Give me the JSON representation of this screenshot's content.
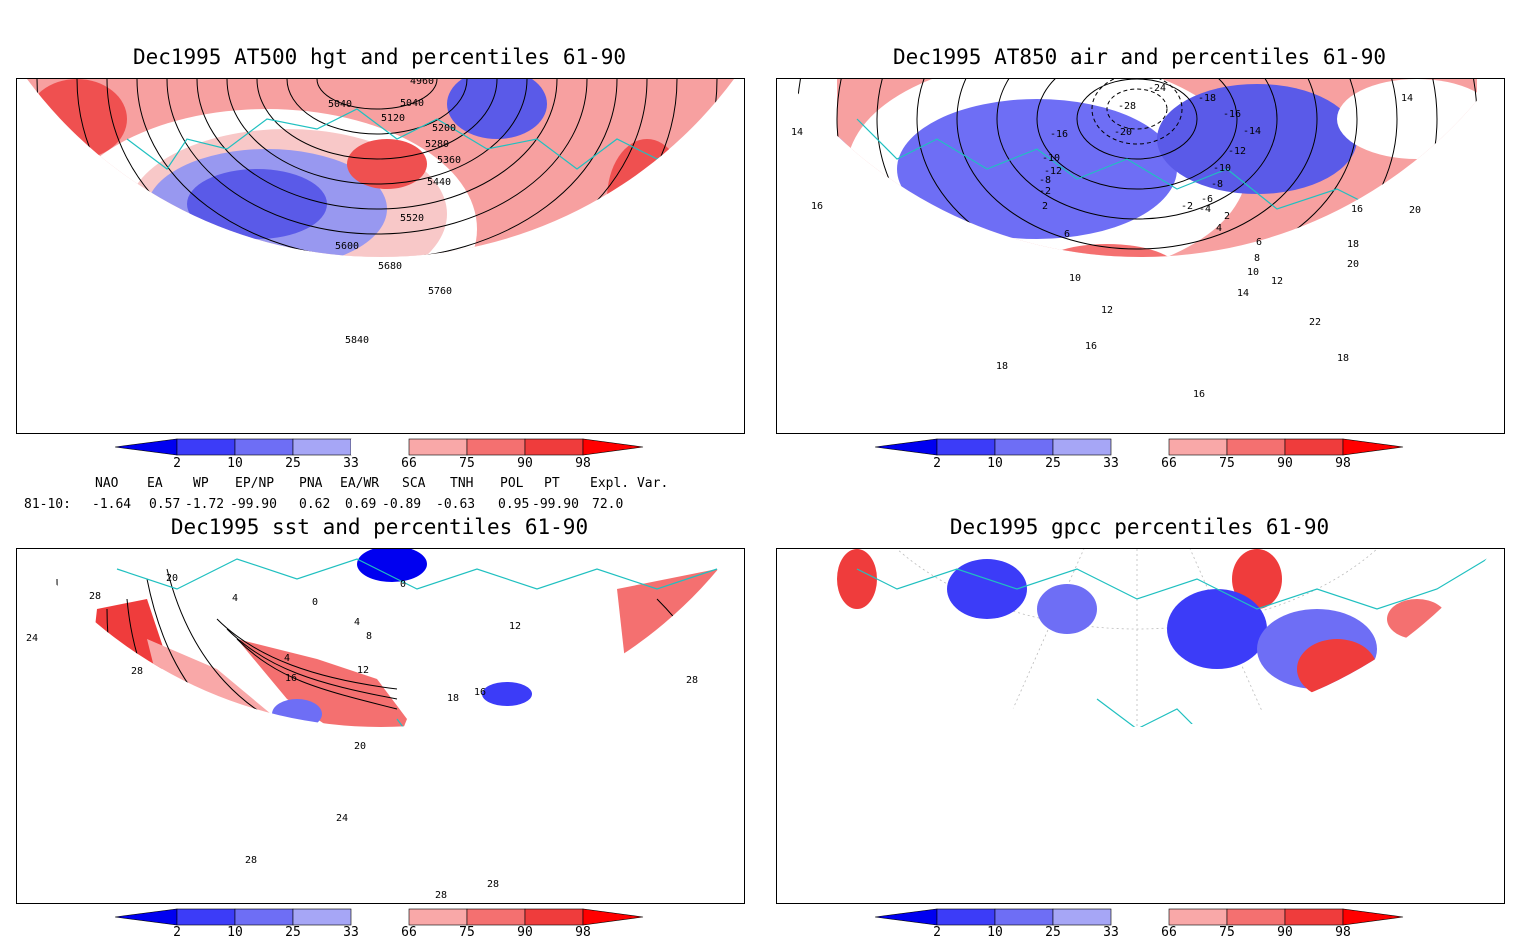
{
  "titles": {
    "tl": "Dec1995 AT500 hgt and percentiles 61-90",
    "tr": "Dec1995 AT850 air and percentiles 61-90",
    "bl": "Dec1995 sst and percentiles 61-90",
    "br": "Dec1995 gpcc percentiles 61-90"
  },
  "colorbar": {
    "labels": [
      "2",
      "10",
      "25",
      "33",
      "66",
      "75",
      "90",
      "98"
    ],
    "colors": [
      "#0000f0",
      "#3c3cf8",
      "#6e6ef5",
      "#a6a6f6",
      "#f9a8a8",
      "#f47070",
      "#ef3c3c",
      "#ff0000"
    ]
  },
  "indices": {
    "header": [
      "NAO",
      "EA",
      "WP",
      "EP/NP",
      "PNA",
      "EA/WR",
      "SCA",
      "TNH",
      "POL",
      "PT",
      "Expl. Var."
    ],
    "row_label": "81-10:",
    "values": [
      "-1.64",
      "0.57",
      "-1.72",
      "-99.90",
      "0.62",
      "0.69",
      "-0.89",
      "-0.63",
      "0.95",
      "-99.90",
      "72.0"
    ]
  },
  "contour_labels": {
    "tl": [
      "4960",
      "5040",
      "5040",
      "5120",
      "5200",
      "5280",
      "5360",
      "5440",
      "5520",
      "5600",
      "5680",
      "5760",
      "5840"
    ],
    "tr": [
      "-24",
      "-18",
      "-16",
      "-14",
      "-12",
      "-10",
      "-8",
      "-6",
      "-4",
      "-2",
      "2",
      "4",
      "6",
      "8",
      "10",
      "12",
      "14",
      "16",
      "18",
      "20",
      "22",
      "-16",
      "-20",
      "-28",
      "-10",
      "-12",
      "-8",
      "-2",
      "2",
      "6",
      "10",
      "12",
      "16",
      "18",
      "14",
      "16",
      "14",
      "20",
      "18",
      "16"
    ],
    "bl": [
      "20",
      "28",
      "24",
      "4",
      "0",
      "4",
      "8",
      "4",
      "12",
      "16",
      "16",
      "18",
      "20",
      "24",
      "28",
      "28",
      "28",
      "28",
      "28",
      "0",
      "12"
    ]
  }
}
